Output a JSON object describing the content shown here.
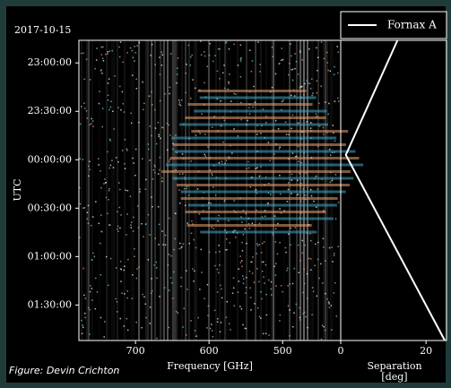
{
  "credit": "Figure: Devin Crichton",
  "chart_data": [
    {
      "type": "heatmap",
      "title": "2017-10-15",
      "xlabel": "Frequency [GHz]",
      "ylabel": "UTC",
      "xlim": [
        777,
        421
      ],
      "xticks": [
        700,
        600,
        500
      ],
      "ylim": [
        -14,
        172
      ],
      "yticks": [
        {
          "value": 0,
          "label": "23:00:00"
        },
        {
          "value": 30,
          "label": "23:30:00"
        },
        {
          "value": 60,
          "label": "00:00:00"
        },
        {
          "value": 90,
          "label": "00:30:00"
        },
        {
          "value": 120,
          "label": "01:00:00"
        },
        {
          "value": 150,
          "label": "01:30:00"
        }
      ]
    },
    {
      "type": "line",
      "xlabel": [
        "Separation",
        "[deg]"
      ],
      "xlim": [
        0,
        24.8
      ],
      "xticks": [
        0,
        20
      ],
      "ylim": [
        -14,
        172
      ],
      "y": [
        -14,
        57,
        172
      ],
      "series": [
        {
          "name": "Fornax A",
          "color": "#ffffff",
          "values": [
            13.3,
            1.2,
            24.4
          ]
        }
      ]
    }
  ]
}
